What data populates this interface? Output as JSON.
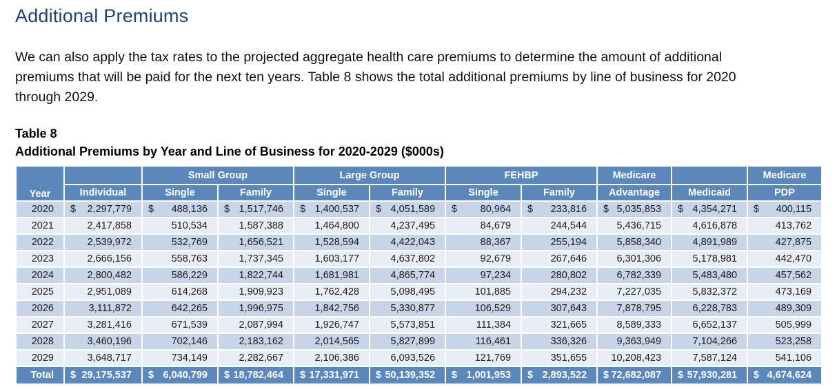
{
  "page": {
    "title": "Additional Premiums",
    "paragraph": "We can also apply the tax rates to the projected aggregate health care premiums to determine the amount of additional premiums that will be paid for the next ten years. Table 8 shows the total additional premiums by line of business for 2020 through 2029.",
    "table_label": "Table 8",
    "table_title": "Additional Premiums by Year and Line of Business for 2020-2029 ($000s)"
  },
  "colors": {
    "title_navy": "#1e4276",
    "header_blue": "#5b87ba",
    "band_dark": "#c8d4e8",
    "band_light": "#e9edf5",
    "header_text": "#ffffff"
  },
  "table": {
    "currency_symbol": "$",
    "head": {
      "year": "Year",
      "individual": "Individual",
      "small_group": "Small Group",
      "large_group": "Large Group",
      "fehbp": "FEHBP",
      "medicare": "Medicare",
      "advantage": "Advantage",
      "medicaid": "Medicaid",
      "medicare2": "Medicare",
      "pdp": "PDP",
      "single": "Single",
      "family": "Family"
    },
    "columns": [
      "Year",
      "Individual",
      "Small Group Single",
      "Small Group Family",
      "Large Group Single",
      "Large Group Family",
      "FEHBP Single",
      "FEHBP Family",
      "Medicare Advantage",
      "Medicaid",
      "Medicare PDP"
    ],
    "rows": [
      {
        "year": "2020",
        "dollar": true,
        "values": [
          "2,297,779",
          "488,136",
          "1,517,746",
          "1,400,537",
          "4,051,589",
          "80,964",
          "233,816",
          "5,035,853",
          "4,354,271",
          "400,115"
        ]
      },
      {
        "year": "2021",
        "dollar": false,
        "values": [
          "2,417,858",
          "510,534",
          "1,587,388",
          "1,464,800",
          "4,237,495",
          "84,679",
          "244,544",
          "5,436,715",
          "4,616,878",
          "413,762"
        ]
      },
      {
        "year": "2022",
        "dollar": false,
        "values": [
          "2,539,972",
          "532,769",
          "1,656,521",
          "1,528,594",
          "4,422,043",
          "88,367",
          "255,194",
          "5,858,340",
          "4,891,989",
          "427,875"
        ]
      },
      {
        "year": "2023",
        "dollar": false,
        "values": [
          "2,666,156",
          "558,763",
          "1,737,345",
          "1,603,177",
          "4,637,802",
          "92,679",
          "267,646",
          "6,301,306",
          "5,178,981",
          "442,470"
        ]
      },
      {
        "year": "2024",
        "dollar": false,
        "values": [
          "2,800,482",
          "586,229",
          "1,822,744",
          "1,681,981",
          "4,865,774",
          "97,234",
          "280,802",
          "6,782,339",
          "5,483,480",
          "457,562"
        ]
      },
      {
        "year": "2025",
        "dollar": false,
        "values": [
          "2,951,089",
          "614,268",
          "1,909,923",
          "1,762,428",
          "5,098,495",
          "101,885",
          "294,232",
          "7,227,035",
          "5,832,372",
          "473,169"
        ]
      },
      {
        "year": "2026",
        "dollar": false,
        "values": [
          "3,111,872",
          "642,265",
          "1,996,975",
          "1,842,756",
          "5,330,877",
          "106,529",
          "307,643",
          "7,878,795",
          "6,228,783",
          "489,309"
        ]
      },
      {
        "year": "2027",
        "dollar": false,
        "values": [
          "3,281,416",
          "671,539",
          "2,087,994",
          "1,926,747",
          "5,573,851",
          "111,384",
          "321,665",
          "8,589,333",
          "6,652,137",
          "505,999"
        ]
      },
      {
        "year": "2028",
        "dollar": false,
        "values": [
          "3,460,196",
          "702,146",
          "2,183,162",
          "2,014,565",
          "5,827,899",
          "116,461",
          "336,326",
          "9,363,949",
          "7,104,266",
          "523,258"
        ]
      },
      {
        "year": "2029",
        "dollar": false,
        "values": [
          "3,648,717",
          "734,149",
          "2,282,667",
          "2,106,386",
          "6,093,526",
          "121,769",
          "351,655",
          "10,208,423",
          "7,587,124",
          "541,106"
        ]
      }
    ],
    "total": {
      "label": "Total",
      "dollar": true,
      "values": [
        "29,175,537",
        "6,040,799",
        "18,782,464",
        "17,331,971",
        "50,139,352",
        "1,001,953",
        "2,893,522",
        "72,682,087",
        "57,930,281",
        "4,674,624"
      ]
    }
  }
}
